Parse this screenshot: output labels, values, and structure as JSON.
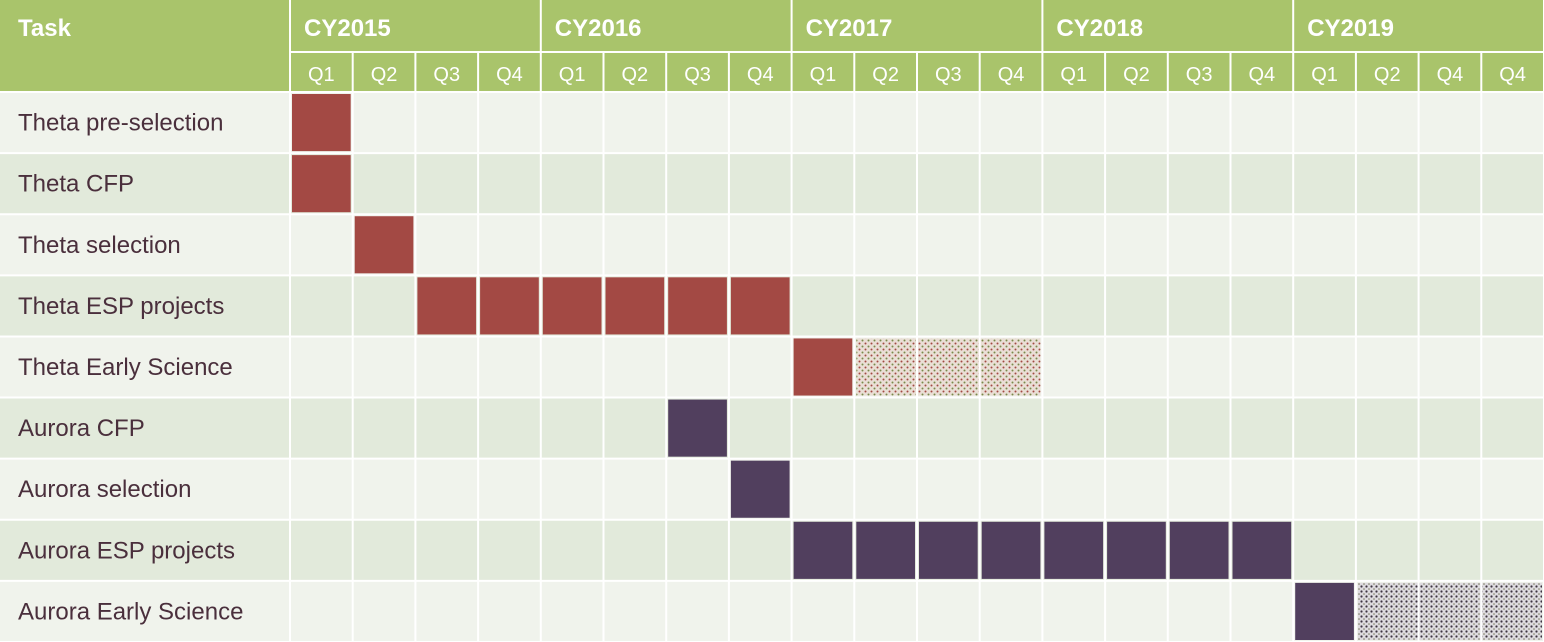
{
  "chart_data": {
    "type": "table",
    "title": "",
    "header": {
      "task_label": "Task",
      "years": [
        {
          "label": "CY2015",
          "quarters": [
            "Q1",
            "Q2",
            "Q3",
            "Q4"
          ]
        },
        {
          "label": "CY2016",
          "quarters": [
            "Q1",
            "Q2",
            "Q3",
            "Q4"
          ]
        },
        {
          "label": "CY2017",
          "quarters": [
            "Q1",
            "Q2",
            "Q3",
            "Q4"
          ]
        },
        {
          "label": "CY2018",
          "quarters": [
            "Q1",
            "Q2",
            "Q3",
            "Q4"
          ]
        },
        {
          "label": "CY2019",
          "quarters": [
            "Q1",
            "Q2",
            "Q4",
            "Q4"
          ]
        }
      ]
    },
    "tasks": [
      {
        "name": "Theta pre-selection",
        "color": "#a34944",
        "solid": [
          [
            0,
            0
          ]
        ],
        "tentative": []
      },
      {
        "name": "Theta CFP",
        "color": "#a34944",
        "solid": [
          [
            0,
            0
          ]
        ],
        "tentative": []
      },
      {
        "name": "Theta selection",
        "color": "#a34944",
        "solid": [
          [
            1,
            1
          ]
        ],
        "tentative": []
      },
      {
        "name": "Theta ESP projects",
        "color": "#a34944",
        "solid": [
          [
            2,
            7
          ]
        ],
        "tentative": []
      },
      {
        "name": "Theta Early Science",
        "color": "#a34944",
        "solid": [
          [
            8,
            8
          ]
        ],
        "tentative": [
          [
            9,
            11
          ]
        ]
      },
      {
        "name": "Aurora CFP",
        "color": "#513f5e",
        "solid": [
          [
            6,
            6
          ]
        ],
        "tentative": []
      },
      {
        "name": "Aurora selection",
        "color": "#513f5e",
        "solid": [
          [
            7,
            7
          ]
        ],
        "tentative": []
      },
      {
        "name": "Aurora ESP projects",
        "color": "#513f5e",
        "solid": [
          [
            8,
            15
          ]
        ],
        "tentative": []
      },
      {
        "name": "Aurora Early Science",
        "color": "#513f5e",
        "solid": [
          [
            16,
            16
          ]
        ],
        "tentative": [
          [
            17,
            19
          ]
        ]
      }
    ],
    "colors": {
      "header_bg": "#a9c46b",
      "row_light": "#f0f3ec",
      "row_dark": "#e2eadb",
      "grid_line": "#ffffff",
      "task_text": "#4a2f3c",
      "theta": "#a34944",
      "aurora": "#513f5e"
    },
    "legend": "none",
    "grid": true
  }
}
